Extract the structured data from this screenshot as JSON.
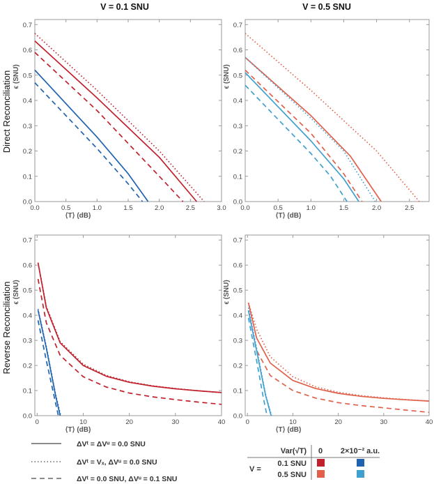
{
  "column_titles": [
    "V = 0.1 SNU",
    "V = 0.5 SNU"
  ],
  "row_titles": [
    "Direct Reconciliation",
    "Reverse Reconciliation"
  ],
  "colors": {
    "v01_var0": "#c0202c",
    "v01_var2": "#1f63b0",
    "v05_var0": "#e0604a",
    "v05_var2": "#3fa0cf"
  },
  "chart_data": [
    {
      "type": "line",
      "panel": "top-left",
      "title": "V = 0.1 SNU",
      "xlabel": "⟨T⟩ (dB)",
      "ylabel": "ϵ (SNU)",
      "xlim": [
        0,
        3.0
      ],
      "ylim": [
        0,
        0.72
      ],
      "xticks": [
        0,
        0.5,
        1.0,
        1.5,
        2.0,
        2.5,
        3.0
      ],
      "xtick_labels": [
        "0.0",
        "0.5",
        "1.0",
        "1.5",
        "2.0",
        "2.5",
        "3.0"
      ],
      "yticks": [
        0,
        0.1,
        0.2,
        0.3,
        0.4,
        0.5,
        0.6,
        0.7
      ],
      "ytick_labels": [
        "0.0",
        "0.1",
        "0.2",
        "0.3",
        "0.4",
        "0.5",
        "0.6",
        "0.7"
      ],
      "series": [
        {
          "name": "ΔVᵗ = ΔVᵘ = 0.0 SNU, Var 0",
          "color": "#c0202c",
          "dash": "solid",
          "x": [
            0,
            1.0,
            2.0,
            2.6
          ],
          "y": [
            0.635,
            0.41,
            0.175,
            0.0
          ]
        },
        {
          "name": "ΔVᵗ = Vx, ΔVᵘ = 0.0 SNU, Var 0",
          "color": "#c0202c",
          "dash": "dotted",
          "x": [
            0,
            1.0,
            2.0,
            2.72
          ],
          "y": [
            0.665,
            0.44,
            0.2,
            0.0
          ]
        },
        {
          "name": "ΔVᵗ = 0.0 SNU, ΔVᵘ = 0.1 SNU, Var 0",
          "color": "#c0202c",
          "dash": "dashed",
          "x": [
            0,
            1.0,
            2.0,
            2.38
          ],
          "y": [
            0.59,
            0.36,
            0.1,
            0.0
          ]
        },
        {
          "name": "ΔVᵗ = ΔVᵘ = 0.0 SNU, Var 2e-2",
          "color": "#1f63b0",
          "dash": "solid",
          "x": [
            0,
            1.0,
            1.5,
            1.82
          ],
          "y": [
            0.52,
            0.255,
            0.11,
            0.0
          ]
        },
        {
          "name": "ΔVᵗ = 0.0 SNU, ΔVᵘ = 0.1 SNU, Var 2e-2",
          "color": "#1f63b0",
          "dash": "dashed",
          "x": [
            0,
            1.0,
            1.5,
            1.73
          ],
          "y": [
            0.47,
            0.21,
            0.07,
            0.0
          ]
        }
      ]
    },
    {
      "type": "line",
      "panel": "top-right",
      "title": "V = 0.5 SNU",
      "xlabel": "⟨T⟩ (dB)",
      "ylabel": "ϵ (SNU)",
      "xlim": [
        0,
        2.8
      ],
      "ylim": [
        0,
        0.72
      ],
      "xticks": [
        0,
        0.5,
        1.0,
        1.5,
        2.0,
        2.5
      ],
      "xtick_labels": [
        "0.0",
        "0.5",
        "1.0",
        "1.5",
        "2.0",
        "2.5"
      ],
      "yticks": [
        0,
        0.1,
        0.2,
        0.3,
        0.4,
        0.5,
        0.6,
        0.7
      ],
      "ytick_labels": [
        "0.0",
        "0.1",
        "0.2",
        "0.3",
        "0.4",
        "0.5",
        "0.6",
        "0.7"
      ],
      "series": [
        {
          "name": "ΔVᵗ = ΔVᵘ = 0.0 SNU, Var 0",
          "color": "#e0604a",
          "dash": "solid",
          "x": [
            0,
            1.0,
            1.6,
            2.07
          ],
          "y": [
            0.57,
            0.34,
            0.18,
            0.0
          ]
        },
        {
          "name": "ΔVᵗ = Vx, ΔVᵘ = 0.0 SNU, Var 0",
          "color": "#e0604a",
          "dash": "dotted",
          "x": [
            0,
            1.0,
            2.0,
            2.65
          ],
          "y": [
            0.665,
            0.44,
            0.2,
            0.0
          ]
        },
        {
          "name": "ΔVᵗ = 0.0 SNU, ΔVᵘ = 0.1 SNU, Var 0",
          "color": "#e0604a",
          "dash": "dashed",
          "x": [
            0,
            1.0,
            1.5,
            1.78
          ],
          "y": [
            0.52,
            0.27,
            0.11,
            0.0
          ]
        },
        {
          "name": "ΔVᵗ = ΔVᵘ = 0.0 SNU, Var 2e-2",
          "color": "#3fa0cf",
          "dash": "solid",
          "x": [
            0,
            1.0,
            1.5,
            1.73
          ],
          "y": [
            0.51,
            0.24,
            0.09,
            0.0
          ]
        },
        {
          "name": "ΔVᵗ = Vx, ΔVᵘ = 0.0 SNU, Var 2e-2",
          "color": "#3fa0cf",
          "dash": "dotted",
          "x": [
            0,
            1.0,
            1.5,
            1.98
          ],
          "y": [
            0.57,
            0.33,
            0.2,
            0.0
          ]
        },
        {
          "name": "ΔVᵗ = 0.0 SNU, ΔVᵘ = 0.1 SNU, Var 2e-2",
          "color": "#3fa0cf",
          "dash": "dashed",
          "x": [
            0,
            1.0,
            1.3,
            1.55
          ],
          "y": [
            0.46,
            0.19,
            0.1,
            0.0
          ]
        }
      ]
    },
    {
      "type": "line",
      "panel": "bottom-left",
      "xlabel": "⟨T⟩ (dB)",
      "ylabel": "ϵ (SNU)",
      "xlim": [
        -0.5,
        40
      ],
      "ylim": [
        0,
        0.72
      ],
      "xticks": [
        0,
        10,
        20,
        30,
        40
      ],
      "xtick_labels": [
        "0",
        "10",
        "20",
        "30",
        "40"
      ],
      "yticks": [
        0,
        0.1,
        0.2,
        0.3,
        0.4,
        0.5,
        0.6,
        0.7
      ],
      "ytick_labels": [
        "0.0",
        "0.1",
        "0.2",
        "0.3",
        "0.4",
        "0.5",
        "0.6",
        "0.7"
      ],
      "series": [
        {
          "name": "ΔVᵗ = ΔVᵘ = 0.0 SNU, Var 0",
          "color": "#c0202c",
          "dash": "solid",
          "x": [
            0.2,
            2,
            5,
            10,
            15,
            20,
            25,
            30,
            35,
            40
          ],
          "y": [
            0.61,
            0.43,
            0.29,
            0.2,
            0.157,
            0.133,
            0.118,
            0.107,
            0.099,
            0.092
          ]
        },
        {
          "name": "ΔVᵗ = Vx, ΔVᵘ = 0.0 SNU, Var 0",
          "color": "#c0202c",
          "dash": "dotted",
          "x": [
            0.2,
            2,
            5,
            10,
            15,
            20,
            25,
            30,
            35,
            40
          ],
          "y": [
            0.61,
            0.435,
            0.295,
            0.205,
            0.16,
            0.135,
            0.119,
            0.108,
            0.099,
            0.092
          ]
        },
        {
          "name": "ΔVᵗ = 0.0 SNU, ΔVᵘ = 0.1 SNU, Var 0",
          "color": "#c0202c",
          "dash": "dashed",
          "x": [
            0.2,
            2,
            5,
            10,
            15,
            20,
            25,
            30,
            35,
            40
          ],
          "y": [
            0.545,
            0.37,
            0.24,
            0.155,
            0.114,
            0.09,
            0.075,
            0.064,
            0.054,
            0.045
          ]
        },
        {
          "name": "ΔVᵗ = ΔVᵘ = 0.0 SNU, Var 2e-2",
          "color": "#1f63b0",
          "dash": "solid",
          "x": [
            0.2,
            2,
            4,
            5.0
          ],
          "y": [
            0.42,
            0.27,
            0.08,
            0.0
          ]
        },
        {
          "name": "ΔVᵗ = Vx, ΔVᵘ = 0.0 SNU, Var 2e-2",
          "color": "#1f63b0",
          "dash": "dotted",
          "x": [
            0.2,
            2,
            4,
            5.1
          ],
          "y": [
            0.425,
            0.275,
            0.085,
            0.0
          ]
        },
        {
          "name": "ΔVᵗ = 0.0 SNU, ΔVᵘ = 0.1 SNU, Var 2e-2",
          "color": "#1f63b0",
          "dash": "dashed",
          "x": [
            0.2,
            2,
            4,
            4.6
          ],
          "y": [
            0.38,
            0.22,
            0.05,
            0.0
          ]
        }
      ]
    },
    {
      "type": "line",
      "panel": "bottom-right",
      "xlabel": "⟨T⟩ (dB)",
      "ylabel": "ϵ (SNU)",
      "xlim": [
        -0.5,
        40
      ],
      "ylim": [
        0,
        0.72
      ],
      "xticks": [
        0,
        10,
        20,
        30,
        40
      ],
      "xtick_labels": [
        "0",
        "10",
        "20",
        "30",
        "40"
      ],
      "yticks": [
        0,
        0.1,
        0.2,
        0.3,
        0.4,
        0.5,
        0.6,
        0.7
      ],
      "ytick_labels": [
        "0.0",
        "0.1",
        "0.2",
        "0.3",
        "0.4",
        "0.5",
        "0.6",
        "0.7"
      ],
      "series": [
        {
          "name": "ΔVᵗ = ΔVᵘ = 0.0 SNU, Var 0",
          "color": "#e0604a",
          "dash": "solid",
          "x": [
            0.2,
            2,
            5,
            10,
            15,
            20,
            25,
            30,
            35,
            40
          ],
          "y": [
            0.45,
            0.31,
            0.21,
            0.14,
            0.108,
            0.089,
            0.077,
            0.069,
            0.063,
            0.058
          ]
        },
        {
          "name": "ΔVᵗ = Vx, ΔVᵘ = 0.0 SNU, Var 0",
          "color": "#e0604a",
          "dash": "dotted",
          "x": [
            0.2,
            2,
            5,
            10,
            15,
            20,
            25,
            30,
            35,
            40
          ],
          "y": [
            0.45,
            0.345,
            0.235,
            0.155,
            0.115,
            0.093,
            0.08,
            0.071,
            0.064,
            0.058
          ]
        },
        {
          "name": "ΔVᵗ = 0.0 SNU, ΔVᵘ = 0.1 SNU, Var 0",
          "color": "#e0604a",
          "dash": "dashed",
          "x": [
            0.2,
            2,
            5,
            10,
            15,
            20,
            25,
            30,
            35,
            40
          ],
          "y": [
            0.42,
            0.26,
            0.16,
            0.1,
            0.07,
            0.052,
            0.04,
            0.031,
            0.022,
            0.013
          ]
        },
        {
          "name": "ΔVᵗ = ΔVᵘ = 0.0 SNU, Var 2e-2",
          "color": "#3fa0cf",
          "dash": "solid",
          "x": [
            0.2,
            2,
            4,
            5.2
          ],
          "y": [
            0.42,
            0.26,
            0.08,
            0.0
          ]
        },
        {
          "name": "ΔVᵗ = Vx, ΔVᵘ = 0.0 SNU, Var 2e-2",
          "color": "#3fa0cf",
          "dash": "dotted",
          "x": [
            0.2,
            2,
            4,
            5.3
          ],
          "y": [
            0.43,
            0.27,
            0.085,
            0.0
          ]
        },
        {
          "name": "ΔVᵗ = 0.0 SNU, ΔVᵘ = 0.1 SNU, Var 2e-2",
          "color": "#3fa0cf",
          "dash": "dashed",
          "x": [
            0.2,
            2,
            3.5,
            4.3
          ],
          "y": [
            0.39,
            0.22,
            0.07,
            0.0
          ]
        }
      ]
    }
  ],
  "legend": {
    "line_styles": [
      {
        "style": "solid",
        "label": "ΔVᵗ = ΔVᵘ = 0.0 SNU"
      },
      {
        "style": "dotted",
        "label": "ΔVᵗ = Vₓ, ΔVᵘ = 0.0 SNU"
      },
      {
        "style": "dashed",
        "label": "ΔVᵗ = 0.0 SNU, ΔVᵘ = 0.1 SNU"
      }
    ],
    "table": {
      "header_var": "Var(√T)",
      "header_col0": "0",
      "header_col1": "2×10⁻² a.u.",
      "v_label": "V =",
      "rows": [
        {
          "label": "0.1 SNU",
          "color0": "#c0202c",
          "color1": "#1f63b0"
        },
        {
          "label": "0.5 SNU",
          "color0": "#e0604a",
          "color1": "#3fa0cf"
        }
      ]
    }
  }
}
